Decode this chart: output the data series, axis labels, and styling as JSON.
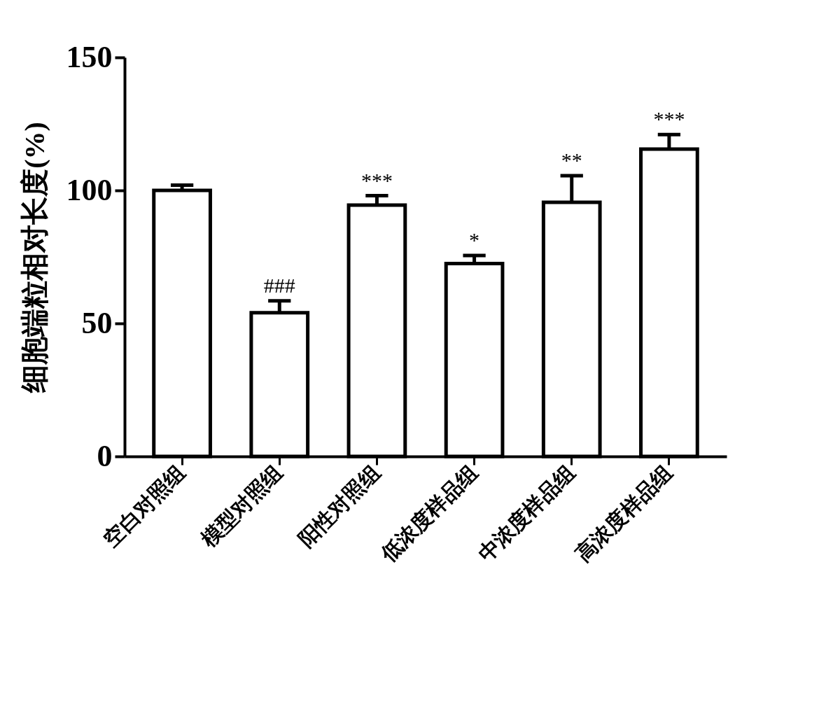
{
  "chart_data": {
    "type": "bar",
    "ylabel": "细胞端粒相对长度(%)",
    "categories": [
      "空白对照组",
      "模型对照组",
      "阳性对照组",
      "低浓度样品组",
      "中浓度样品组",
      "高浓度样品组"
    ],
    "values": [
      100,
      54,
      94.5,
      72.5,
      95.5,
      115.5
    ],
    "errors": [
      [
        100,
        102
      ],
      [
        54,
        58.5
      ],
      [
        94.5,
        98
      ],
      [
        72.5,
        75.5
      ],
      [
        95.5,
        105.5
      ],
      [
        115.5,
        121
      ]
    ],
    "color": "#ffffff",
    "ylim": [
      0,
      150
    ],
    "yticks": [
      0,
      50,
      100,
      150
    ],
    "grid": false,
    "annotations": [
      {
        "text": "###",
        "x": "模型对照组",
        "y": 58.5
      },
      {
        "text": "***",
        "x": "阳性对照组",
        "y": 98
      },
      {
        "text": "*",
        "x": "低浓度样品组",
        "y": 75.5
      },
      {
        "text": "**",
        "x": "中浓度样品组",
        "y": 105.5
      },
      {
        "text": "***",
        "x": "高浓度样品组",
        "y": 121
      }
    ]
  }
}
